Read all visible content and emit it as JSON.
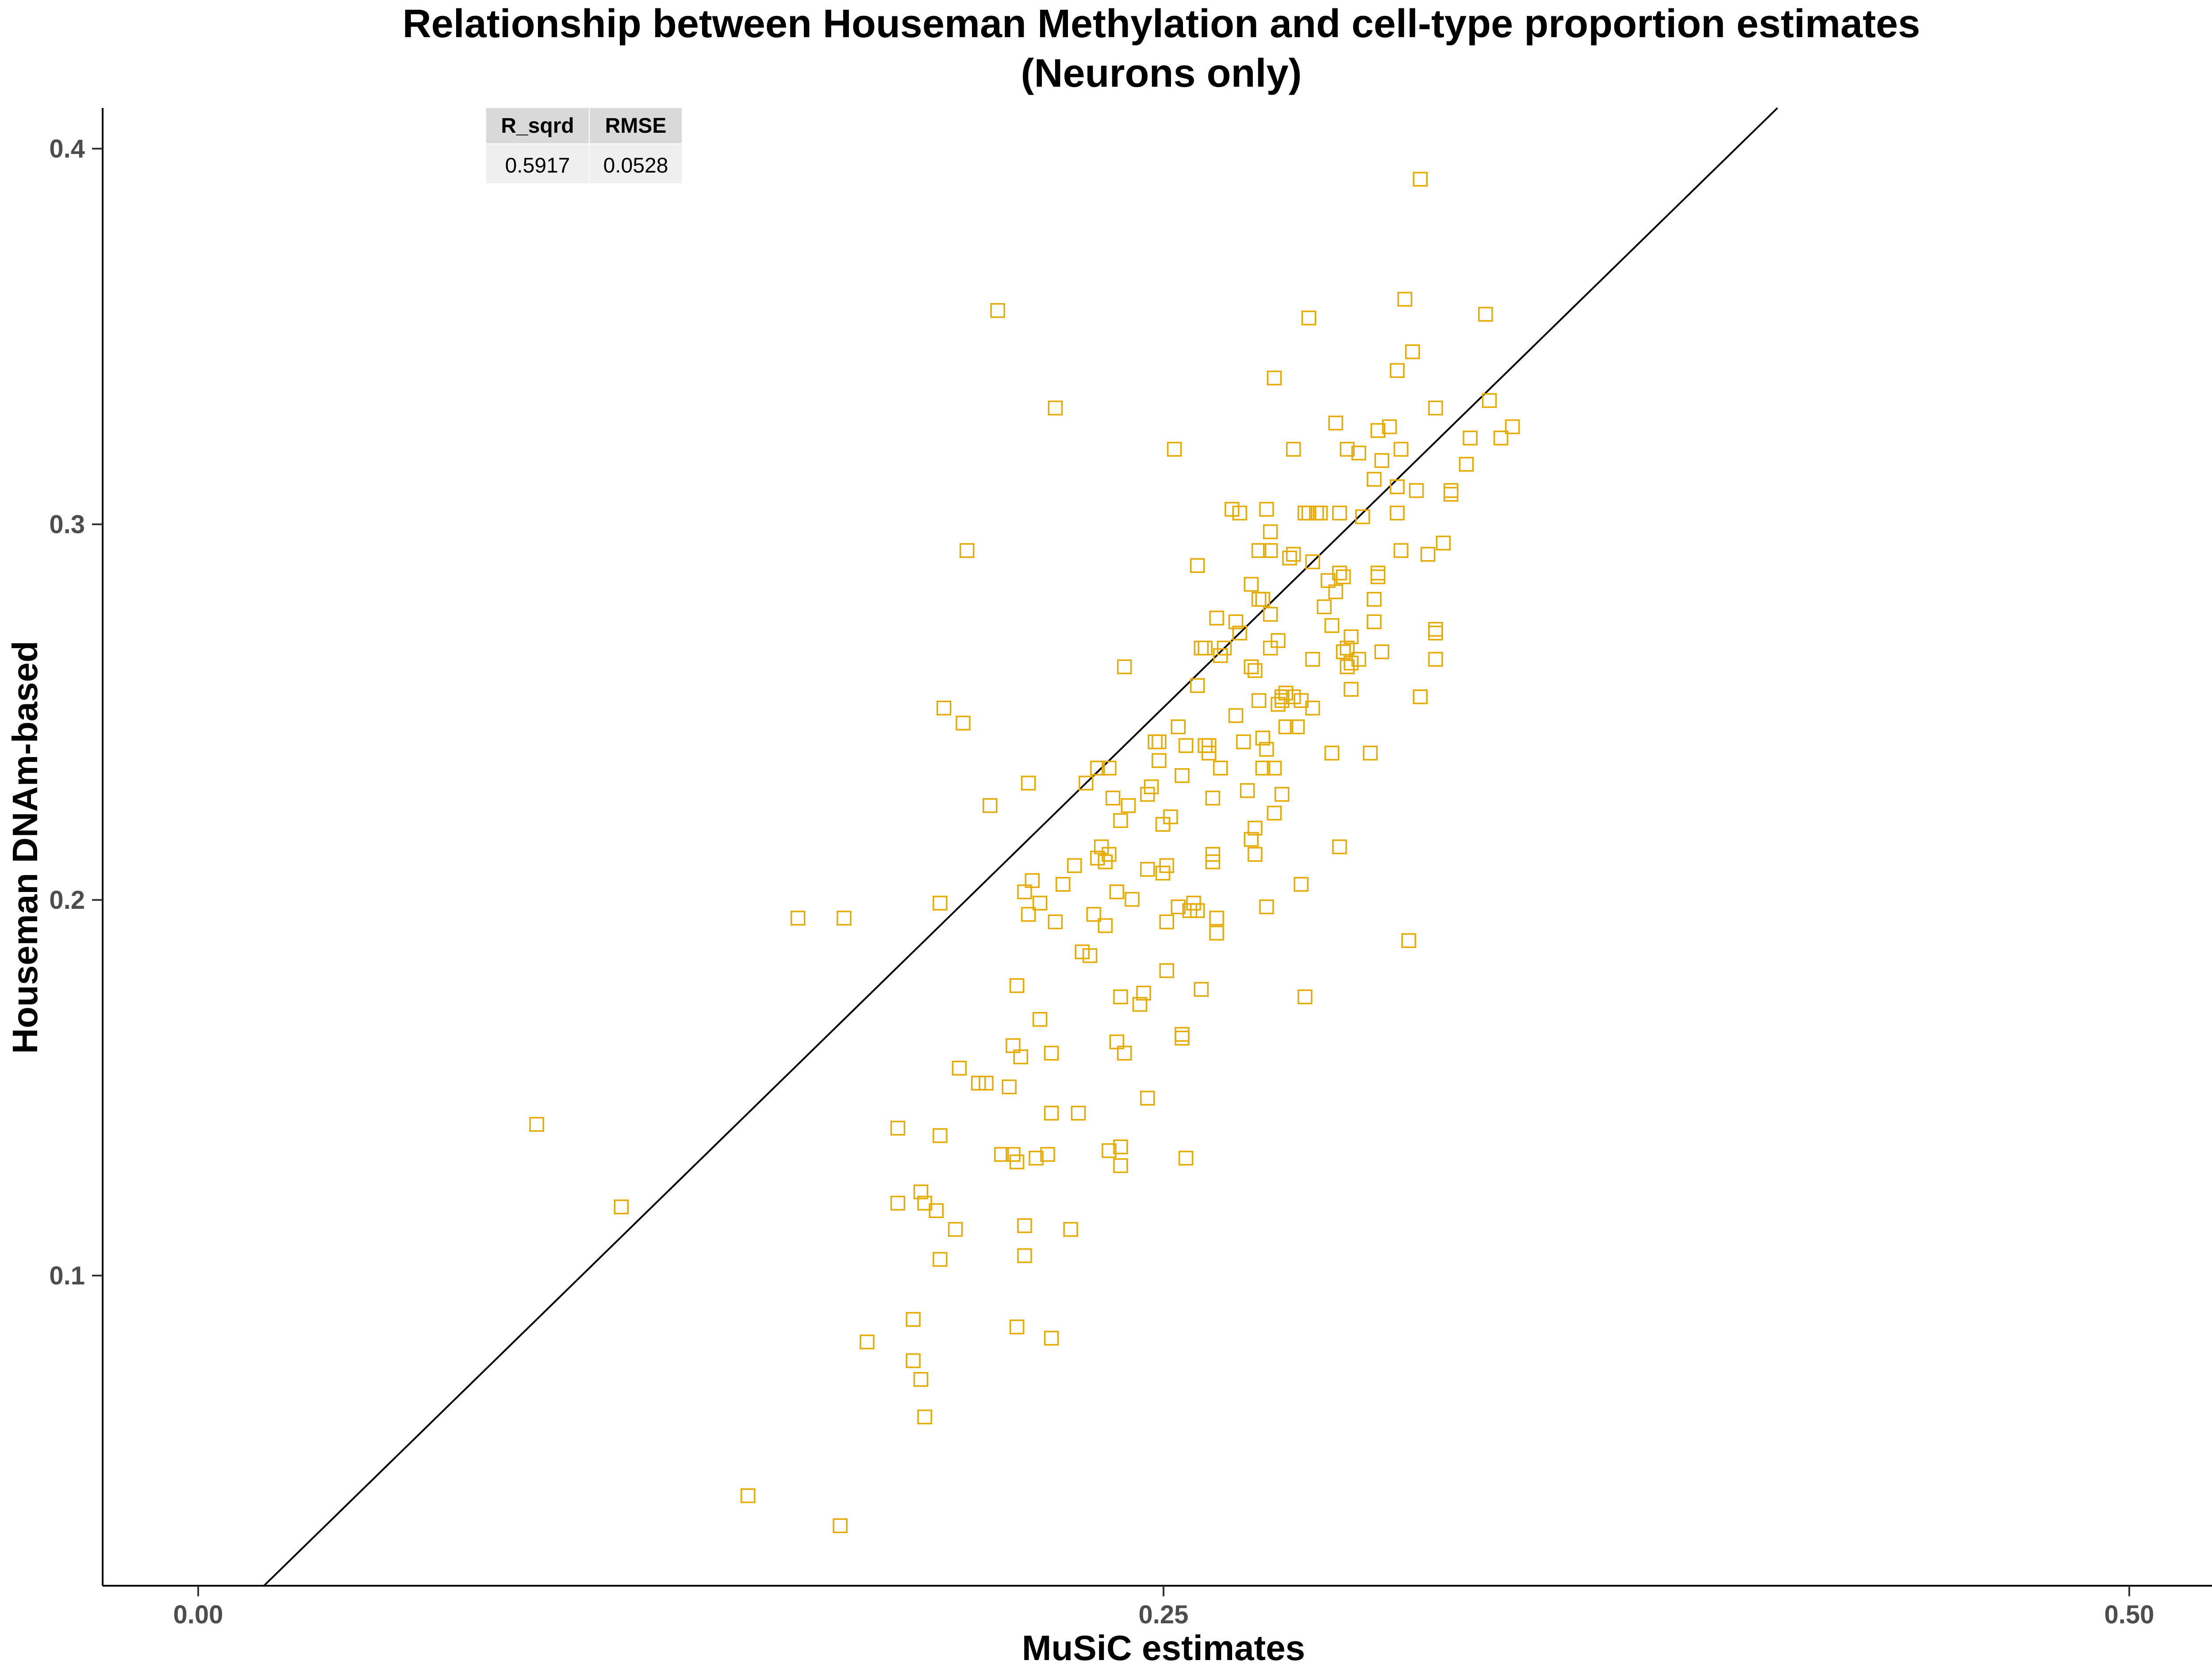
{
  "chart_data": {
    "type": "scatter",
    "title": "Relationship between Houseman Methylation and cell-type proportion estimates",
    "subtitle": "(Neurons only)",
    "xlabel": "MuSiC estimates",
    "ylabel": "Houseman DNAm-based",
    "x_ticks": [
      "0.00",
      "0.25",
      "0.50"
    ],
    "y_ticks": [
      "0.1",
      "0.2",
      "0.3",
      "0.4"
    ],
    "xlim": [
      -0.025,
      0.527
    ],
    "ylim": [
      0.017,
      0.411
    ],
    "grid": false,
    "marker": "open-square",
    "point_color": "#E6AB02",
    "line_color": "#000000",
    "reference_line": {
      "type": "identity",
      "slope": 1,
      "intercept": 0
    },
    "stats_table": {
      "headers": [
        "R_sqrd",
        "RMSE"
      ],
      "values": [
        "0.5917",
        "0.0528"
      ],
      "header_fill": "#D9D9D9",
      "value_fill": "#EFEFEF"
    },
    "points": [
      [
        0.088,
        0.14
      ],
      [
        0.11,
        0.118
      ],
      [
        0.143,
        0.041
      ],
      [
        0.156,
        0.195
      ],
      [
        0.167,
        0.033
      ],
      [
        0.168,
        0.195
      ],
      [
        0.174,
        0.082
      ],
      [
        0.182,
        0.119
      ],
      [
        0.182,
        0.139
      ],
      [
        0.186,
        0.077
      ],
      [
        0.186,
        0.088
      ],
      [
        0.188,
        0.072
      ],
      [
        0.188,
        0.122
      ],
      [
        0.189,
        0.062
      ],
      [
        0.189,
        0.119
      ],
      [
        0.192,
        0.117
      ],
      [
        0.193,
        0.104
      ],
      [
        0.193,
        0.137
      ],
      [
        0.193,
        0.199
      ],
      [
        0.194,
        0.251
      ],
      [
        0.197,
        0.112
      ],
      [
        0.198,
        0.155
      ],
      [
        0.199,
        0.247
      ],
      [
        0.2,
        0.293
      ],
      [
        0.203,
        0.151
      ],
      [
        0.205,
        0.151
      ],
      [
        0.206,
        0.225
      ],
      [
        0.208,
        0.357
      ],
      [
        0.209,
        0.132
      ],
      [
        0.211,
        0.15
      ],
      [
        0.212,
        0.132
      ],
      [
        0.212,
        0.161
      ],
      [
        0.213,
        0.13
      ],
      [
        0.213,
        0.177
      ],
      [
        0.213,
        0.086
      ],
      [
        0.214,
        0.158
      ],
      [
        0.215,
        0.105
      ],
      [
        0.215,
        0.113
      ],
      [
        0.215,
        0.202
      ],
      [
        0.216,
        0.231
      ],
      [
        0.216,
        0.196
      ],
      [
        0.217,
        0.205
      ],
      [
        0.218,
        0.131
      ],
      [
        0.219,
        0.199
      ],
      [
        0.219,
        0.168
      ],
      [
        0.221,
        0.132
      ],
      [
        0.222,
        0.159
      ],
      [
        0.222,
        0.083
      ],
      [
        0.222,
        0.143
      ],
      [
        0.223,
        0.194
      ],
      [
        0.223,
        0.331
      ],
      [
        0.225,
        0.204
      ],
      [
        0.227,
        0.112
      ],
      [
        0.228,
        0.209
      ],
      [
        0.229,
        0.143
      ],
      [
        0.23,
        0.186
      ],
      [
        0.231,
        0.231
      ],
      [
        0.232,
        0.185
      ],
      [
        0.233,
        0.196
      ],
      [
        0.234,
        0.211
      ],
      [
        0.234,
        0.235
      ],
      [
        0.235,
        0.214
      ],
      [
        0.236,
        0.193
      ],
      [
        0.236,
        0.21
      ],
      [
        0.237,
        0.133
      ],
      [
        0.237,
        0.235
      ],
      [
        0.237,
        0.212
      ],
      [
        0.238,
        0.227
      ],
      [
        0.239,
        0.162
      ],
      [
        0.239,
        0.202
      ],
      [
        0.24,
        0.174
      ],
      [
        0.24,
        0.134
      ],
      [
        0.24,
        0.221
      ],
      [
        0.24,
        0.129
      ],
      [
        0.241,
        0.159
      ],
      [
        0.241,
        0.159
      ],
      [
        0.241,
        0.262
      ],
      [
        0.242,
        0.225
      ],
      [
        0.243,
        0.2
      ],
      [
        0.245,
        0.172
      ],
      [
        0.246,
        0.175
      ],
      [
        0.247,
        0.208
      ],
      [
        0.247,
        0.228
      ],
      [
        0.247,
        0.147
      ],
      [
        0.248,
        0.23
      ],
      [
        0.249,
        0.242
      ],
      [
        0.25,
        0.237
      ],
      [
        0.25,
        0.242
      ],
      [
        0.251,
        0.207
      ],
      [
        0.251,
        0.22
      ],
      [
        0.252,
        0.181
      ],
      [
        0.252,
        0.194
      ],
      [
        0.252,
        0.209
      ],
      [
        0.253,
        0.222
      ],
      [
        0.254,
        0.32
      ],
      [
        0.255,
        0.198
      ],
      [
        0.255,
        0.246
      ],
      [
        0.256,
        0.164
      ],
      [
        0.256,
        0.163
      ],
      [
        0.256,
        0.233
      ],
      [
        0.257,
        0.131
      ],
      [
        0.257,
        0.241
      ],
      [
        0.258,
        0.197
      ],
      [
        0.259,
        0.199
      ],
      [
        0.26,
        0.257
      ],
      [
        0.26,
        0.197
      ],
      [
        0.26,
        0.289
      ],
      [
        0.261,
        0.176
      ],
      [
        0.261,
        0.267
      ],
      [
        0.262,
        0.241
      ],
      [
        0.262,
        0.267
      ],
      [
        0.263,
        0.241
      ],
      [
        0.263,
        0.239
      ],
      [
        0.264,
        0.21
      ],
      [
        0.264,
        0.212
      ],
      [
        0.264,
        0.227
      ],
      [
        0.265,
        0.195
      ],
      [
        0.265,
        0.275
      ],
      [
        0.265,
        0.191
      ],
      [
        0.266,
        0.265
      ],
      [
        0.266,
        0.235
      ],
      [
        0.267,
        0.267
      ],
      [
        0.269,
        0.304
      ],
      [
        0.27,
        0.249
      ],
      [
        0.27,
        0.274
      ],
      [
        0.271,
        0.271
      ],
      [
        0.271,
        0.303
      ],
      [
        0.272,
        0.242
      ],
      [
        0.273,
        0.229
      ],
      [
        0.274,
        0.284
      ],
      [
        0.274,
        0.262
      ],
      [
        0.274,
        0.216
      ],
      [
        0.275,
        0.212
      ],
      [
        0.275,
        0.261
      ],
      [
        0.275,
        0.219
      ],
      [
        0.276,
        0.28
      ],
      [
        0.276,
        0.253
      ],
      [
        0.276,
        0.293
      ],
      [
        0.277,
        0.235
      ],
      [
        0.277,
        0.243
      ],
      [
        0.277,
        0.28
      ],
      [
        0.278,
        0.24
      ],
      [
        0.278,
        0.198
      ],
      [
        0.278,
        0.304
      ],
      [
        0.279,
        0.276
      ],
      [
        0.279,
        0.298
      ],
      [
        0.279,
        0.293
      ],
      [
        0.279,
        0.267
      ],
      [
        0.28,
        0.339
      ],
      [
        0.28,
        0.223
      ],
      [
        0.28,
        0.235
      ],
      [
        0.281,
        0.269
      ],
      [
        0.281,
        0.252
      ],
      [
        0.282,
        0.254
      ],
      [
        0.282,
        0.253
      ],
      [
        0.282,
        0.228
      ],
      [
        0.283,
        0.246
      ],
      [
        0.283,
        0.255
      ],
      [
        0.284,
        0.291
      ],
      [
        0.285,
        0.254
      ],
      [
        0.285,
        0.292
      ],
      [
        0.285,
        0.32
      ],
      [
        0.286,
        0.246
      ],
      [
        0.287,
        0.253
      ],
      [
        0.287,
        0.204
      ],
      [
        0.288,
        0.303
      ],
      [
        0.288,
        0.174
      ],
      [
        0.289,
        0.355
      ],
      [
        0.289,
        0.303
      ],
      [
        0.29,
        0.29
      ],
      [
        0.29,
        0.251
      ],
      [
        0.29,
        0.264
      ],
      [
        0.291,
        0.303
      ],
      [
        0.292,
        0.303
      ],
      [
        0.293,
        0.278
      ],
      [
        0.294,
        0.285
      ],
      [
        0.295,
        0.273
      ],
      [
        0.295,
        0.239
      ],
      [
        0.296,
        0.282
      ],
      [
        0.296,
        0.327
      ],
      [
        0.297,
        0.303
      ],
      [
        0.297,
        0.214
      ],
      [
        0.297,
        0.287
      ],
      [
        0.298,
        0.266
      ],
      [
        0.298,
        0.286
      ],
      [
        0.298,
        0.266
      ],
      [
        0.299,
        0.267
      ],
      [
        0.299,
        0.262
      ],
      [
        0.299,
        0.32
      ],
      [
        0.3,
        0.256
      ],
      [
        0.3,
        0.27
      ],
      [
        0.3,
        0.263
      ],
      [
        0.302,
        0.264
      ],
      [
        0.302,
        0.319
      ],
      [
        0.303,
        0.302
      ],
      [
        0.305,
        0.239
      ],
      [
        0.306,
        0.274
      ],
      [
        0.306,
        0.28
      ],
      [
        0.306,
        0.312
      ],
      [
        0.307,
        0.287
      ],
      [
        0.307,
        0.286
      ],
      [
        0.307,
        0.325
      ],
      [
        0.308,
        0.266
      ],
      [
        0.308,
        0.317
      ],
      [
        0.31,
        0.326
      ],
      [
        0.312,
        0.341
      ],
      [
        0.312,
        0.303
      ],
      [
        0.312,
        0.31
      ],
      [
        0.313,
        0.32
      ],
      [
        0.313,
        0.293
      ],
      [
        0.314,
        0.36
      ],
      [
        0.315,
        0.189
      ],
      [
        0.316,
        0.346
      ],
      [
        0.317,
        0.309
      ],
      [
        0.318,
        0.254
      ],
      [
        0.318,
        0.392
      ],
      [
        0.32,
        0.292
      ],
      [
        0.322,
        0.271
      ],
      [
        0.322,
        0.272
      ],
      [
        0.322,
        0.264
      ],
      [
        0.322,
        0.331
      ],
      [
        0.324,
        0.295
      ],
      [
        0.326,
        0.309
      ],
      [
        0.326,
        0.308
      ],
      [
        0.33,
        0.316
      ],
      [
        0.331,
        0.323
      ],
      [
        0.335,
        0.356
      ],
      [
        0.336,
        0.333
      ],
      [
        0.339,
        0.323
      ],
      [
        0.342,
        0.326
      ]
    ]
  }
}
